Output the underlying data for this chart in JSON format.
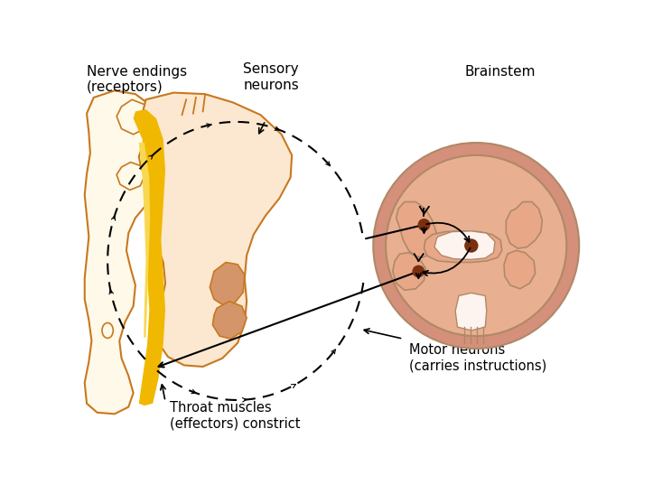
{
  "bg_color": "#ffffff",
  "spine_fill": "#fef9e8",
  "spine_stroke": "#c87820",
  "nerve_body_fill": "#fce8d0",
  "nerve_body_stroke": "#c87820",
  "tongue_fill": "#d4956a",
  "tongue_stroke": "#c87820",
  "yellow_fill": "#f0b800",
  "yellow_dark": "#c89000",
  "bs_outer_fill": "#e8b090",
  "bs_outer_stroke": "#b08868",
  "bs_ring_fill": "#d4907a",
  "bs_gray_fill": "#e8a888",
  "bs_white_fill": "#fce8e0",
  "bs_center_fill": "#fdf4f0",
  "dot_fill": "#7a3010",
  "arrow_color": "#000000",
  "text_color": "#000000",
  "label_nerve_endings": "Nerve endings\n(receptors)",
  "label_sensory": "Sensory\nneurons",
  "label_brainstem": "Brainstem",
  "label_motor": "Motor neurons\n(carries instructions)",
  "label_throat": "Throat muscles\n(effectors) constrict"
}
